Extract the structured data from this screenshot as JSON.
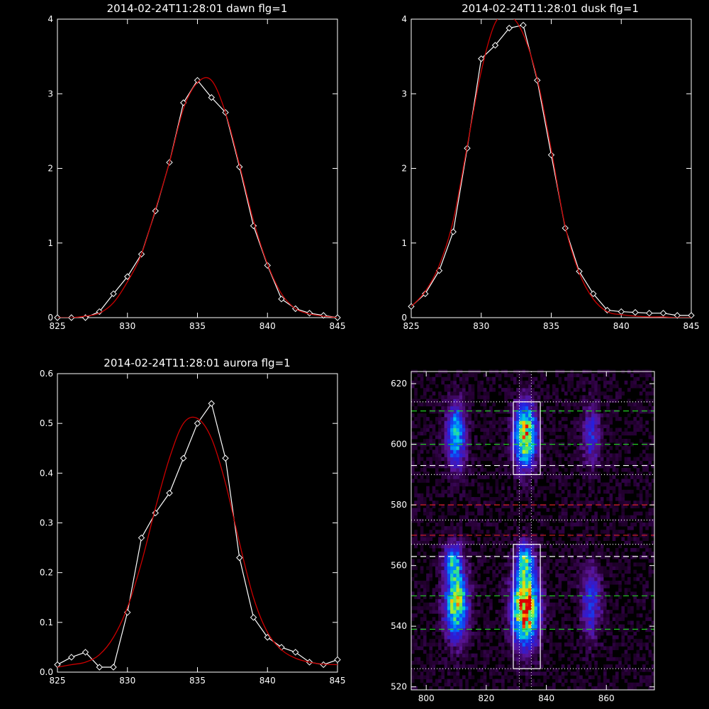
{
  "colors": {
    "background": "#000000",
    "axes": "#ffffff",
    "data_line": "#ffffff",
    "fit_line": "#cc0000",
    "band_fit_dash": "#ffffff",
    "peak_dash": "#22cc22",
    "red_dash": "#dd2222"
  },
  "chart_data": [
    {
      "id": "dawn",
      "type": "line",
      "title": "2014-02-24T11:28:01 dawn flg=1",
      "xlim": [
        825,
        845
      ],
      "ylim": [
        0,
        4
      ],
      "xticks": [
        825,
        830,
        835,
        840,
        845
      ],
      "yticks": [
        0,
        1,
        2,
        3,
        4
      ],
      "series": [
        {
          "style": "data",
          "x": [
            825,
            826,
            827,
            828,
            829,
            830,
            831,
            832,
            833,
            834,
            835,
            836,
            837,
            838,
            839,
            840,
            841,
            842,
            843,
            844,
            845
          ],
          "y": [
            0.0,
            0.0,
            0.0,
            0.08,
            0.32,
            0.55,
            0.85,
            1.43,
            2.08,
            2.88,
            3.18,
            2.95,
            2.75,
            2.02,
            1.23,
            0.7,
            0.25,
            0.12,
            0.06,
            0.03,
            0.0
          ]
        },
        {
          "style": "fit",
          "x": [
            825,
            826,
            827,
            828,
            829,
            830,
            831,
            832,
            833,
            834,
            835,
            836,
            837,
            838,
            839,
            840,
            841,
            842,
            843,
            844,
            845
          ],
          "y": [
            0.0,
            0.0,
            0.02,
            0.06,
            0.2,
            0.48,
            0.85,
            1.45,
            2.08,
            2.8,
            3.15,
            3.18,
            2.75,
            2.05,
            1.3,
            0.72,
            0.32,
            0.12,
            0.05,
            0.02,
            0.0
          ]
        }
      ]
    },
    {
      "id": "dusk",
      "type": "line",
      "title": "2014-02-24T11:28:01 dusk flg=1",
      "xlim": [
        825,
        845
      ],
      "ylim": [
        0,
        4
      ],
      "xticks": [
        825,
        830,
        835,
        840,
        845
      ],
      "yticks": [
        0,
        1,
        2,
        3,
        4
      ],
      "series": [
        {
          "style": "data",
          "x": [
            825,
            826,
            827,
            828,
            829,
            830,
            831,
            832,
            833,
            834,
            835,
            836,
            837,
            838,
            839,
            840,
            841,
            842,
            843,
            844,
            845
          ],
          "y": [
            0.15,
            0.32,
            0.63,
            1.15,
            2.27,
            3.47,
            3.65,
            3.88,
            3.92,
            3.18,
            2.18,
            1.2,
            0.62,
            0.32,
            0.1,
            0.08,
            0.07,
            0.06,
            0.06,
            0.03,
            0.03
          ]
        },
        {
          "style": "fit",
          "x": [
            825,
            826,
            827,
            828,
            829,
            830,
            831,
            832,
            833,
            834,
            835,
            836,
            837,
            838,
            839,
            840,
            841,
            842,
            843,
            844,
            845
          ],
          "y": [
            0.15,
            0.35,
            0.7,
            1.3,
            2.3,
            3.3,
            3.95,
            4.05,
            3.8,
            3.2,
            2.25,
            1.22,
            0.6,
            0.25,
            0.08,
            0.04,
            0.02,
            0.01,
            0.01,
            0.0,
            0.0
          ]
        }
      ]
    },
    {
      "id": "aurora",
      "type": "line",
      "title": "2014-02-24T11:28:01 aurora flg=1",
      "xlim": [
        825,
        845
      ],
      "ylim": [
        0,
        0.6
      ],
      "xticks": [
        825,
        830,
        835,
        840,
        845
      ],
      "yticks": [
        0.0,
        0.1,
        0.2,
        0.3,
        0.4,
        0.5,
        0.6
      ],
      "series": [
        {
          "style": "data",
          "x": [
            825,
            826,
            827,
            828,
            829,
            830,
            831,
            832,
            833,
            834,
            835,
            836,
            837,
            838,
            839,
            840,
            841,
            842,
            843,
            844,
            845
          ],
          "y": [
            0.015,
            0.03,
            0.04,
            0.01,
            0.01,
            0.12,
            0.27,
            0.32,
            0.36,
            0.43,
            0.5,
            0.54,
            0.43,
            0.23,
            0.11,
            0.07,
            0.05,
            0.04,
            0.02,
            0.015,
            0.025
          ]
        },
        {
          "style": "fit",
          "x": [
            825,
            826,
            827,
            828,
            829,
            830,
            831,
            832,
            833,
            834,
            835,
            836,
            837,
            838,
            839,
            840,
            841,
            842,
            843,
            844,
            845
          ],
          "y": [
            0.01,
            0.015,
            0.02,
            0.035,
            0.07,
            0.13,
            0.22,
            0.33,
            0.43,
            0.5,
            0.51,
            0.47,
            0.38,
            0.26,
            0.15,
            0.08,
            0.045,
            0.028,
            0.02,
            0.016,
            0.015
          ]
        }
      ]
    },
    {
      "id": "image",
      "type": "heatmap",
      "title": "",
      "xlim": [
        795,
        876
      ],
      "ylim": [
        519,
        624
      ],
      "xticks": [
        800,
        820,
        840,
        860
      ],
      "yticks": [
        520,
        540,
        560,
        580,
        600,
        620
      ],
      "blobs": [
        {
          "x": 810,
          "y": 603,
          "sx": 2.2,
          "sy": 7,
          "a": 0.55
        },
        {
          "x": 810,
          "y": 548,
          "sx": 2.6,
          "sy": 8,
          "a": 0.75
        },
        {
          "x": 809,
          "y": 562,
          "sx": 2.0,
          "sy": 4,
          "a": 0.4
        },
        {
          "x": 833,
          "y": 603,
          "sx": 2.5,
          "sy": 7,
          "a": 0.85
        },
        {
          "x": 833,
          "y": 546,
          "sx": 3.0,
          "sy": 8,
          "a": 1.0
        },
        {
          "x": 833,
          "y": 562,
          "sx": 2.0,
          "sy": 4,
          "a": 0.5
        },
        {
          "x": 855,
          "y": 603,
          "sx": 2.2,
          "sy": 7,
          "a": 0.28
        },
        {
          "x": 855,
          "y": 548,
          "sx": 2.4,
          "sy": 8,
          "a": 0.32
        }
      ],
      "boxes": [
        {
          "x0": 829,
          "x1": 838,
          "y0": 590,
          "y1": 614
        },
        {
          "x0": 829,
          "x1": 838,
          "y0": 526,
          "y1": 567
        }
      ],
      "vlines_dotted": [
        831,
        835
      ],
      "hlines": [
        {
          "y": 614,
          "style": "dotted-white"
        },
        {
          "y": 611,
          "style": "dashed-green"
        },
        {
          "y": 600,
          "style": "dashed-green"
        },
        {
          "y": 593,
          "style": "dashed-white"
        },
        {
          "y": 590,
          "style": "dotted-white"
        },
        {
          "y": 580,
          "style": "dashed-red"
        },
        {
          "y": 575,
          "style": "dotted-white"
        },
        {
          "y": 570,
          "style": "dashed-red"
        },
        {
          "y": 567,
          "style": "dotted-white"
        },
        {
          "y": 563,
          "style": "dashed-white"
        },
        {
          "y": 550,
          "style": "dashed-green"
        },
        {
          "y": 539,
          "style": "dashed-green"
        },
        {
          "y": 526,
          "style": "dotted-white"
        }
      ]
    }
  ]
}
